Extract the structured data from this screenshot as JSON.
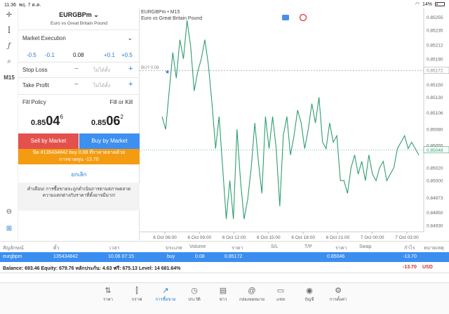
{
  "status": {
    "time": "11:36",
    "date": "พฤ. 7 ต.ค.",
    "battery": "14%"
  },
  "lefttools": {
    "timeframe": "M15"
  },
  "panel": {
    "symbol": "EURGBPm",
    "symbol_desc": "Euro vs Great Britain Pound",
    "order_type": "Market Execution",
    "vol_minus_05": "-0.5",
    "vol_minus_01": "-0.1",
    "volume": "0.08",
    "vol_plus_01": "+0.1",
    "vol_plus_05": "+0.5",
    "stop_loss_label": "Stop Loss",
    "take_profit_label": "Take Profit",
    "not_set": "ไม่ได้ตั้ง",
    "minus": "−",
    "plus": "+",
    "fill_policy_label": "Fill Policy",
    "fill_policy_value": "Fill or Kill",
    "bid_a": "0.85",
    "bid_b": "04",
    "bid_c": "6",
    "ask_a": "0.85",
    "ask_b": "06",
    "ask_c": "2",
    "sell_label": "Sell by Market",
    "buy_label": "Buy by Market",
    "orange_line1": "ปิด #135434842 buy 0.08 ที่ราคาตลาดด้วย",
    "orange_line2": "การขาดทุน -13.70",
    "cancel_label": "ยกเลิก",
    "warning_line1": "คำเตือน! การซื้อขายจะถูกดำเนินการตามสภาพตลาด",
    "warning_line2": "ความแตกต่างกับราคาที่ตั้งอาจมีมาก!"
  },
  "chart": {
    "symbol": "EURGBPm • M15",
    "desc": "Euro vs Great Britain Pound",
    "buy_label": "BUY 0.08"
  },
  "chart_data": {
    "type": "line",
    "x_ticks": [
      "6 Oct 06:00",
      "6 Oct 09:00",
      "6 Oct 12:00",
      "6 Oct 15:00",
      "6 Oct 18:00",
      "6 Oct 21:00",
      "7 Oct 00:00",
      "7 Oct 03:00"
    ],
    "y_ticks": [
      "0.85255",
      "0.85235",
      "0.85212",
      "0.85190",
      "0.85150",
      "0.85130",
      "0.85106",
      "0.85080",
      "0.85055",
      "0.85020",
      "0.85000",
      "0.84973",
      "0.84950",
      "0.84930"
    ],
    "ylim": [
      0.8492,
      0.8526
    ],
    "buy_price": 0.85172,
    "bid_price": 0.85048,
    "bid_label": "0.85048",
    "buy_price_label": "0.85172",
    "series": [
      {
        "values": [
          0.851,
          0.8508,
          0.8514,
          0.852,
          0.8516,
          0.8522,
          0.8519,
          0.8525,
          0.8521,
          0.8514,
          0.8517,
          0.8519,
          0.8522,
          0.8518,
          0.8512,
          0.8505,
          0.851,
          0.8502,
          0.8494,
          0.85,
          0.8494,
          0.8508,
          0.85,
          0.8494,
          0.8497,
          0.8502,
          0.8509,
          0.8503,
          0.8498,
          0.851,
          0.8505,
          0.851,
          0.8505,
          0.8496,
          0.8507,
          0.851,
          0.8504,
          0.8507,
          0.8511,
          0.8509,
          0.8505,
          0.8508,
          0.8512,
          0.8509,
          0.8513,
          0.8506,
          0.8505,
          0.8509,
          0.8506,
          0.8507,
          0.85,
          0.85,
          0.8498,
          0.8502,
          0.8504,
          0.8501,
          0.8503,
          0.85,
          0.8504,
          0.8501,
          0.85,
          0.8502,
          0.8503,
          0.85,
          0.8501,
          0.8502,
          0.8505,
          0.8506,
          0.8507,
          0.8505,
          0.8506,
          0.8505,
          0.8504
        ]
      }
    ]
  },
  "table": {
    "headers": [
      "สัญลักษณ์",
      "ตั๋ว",
      "เวลา",
      "ประเภท",
      "Volume",
      "ราคา",
      "S/L",
      "T/P",
      "ราคา",
      "Swap",
      "กำไร",
      "หมายเหตุ"
    ],
    "row": {
      "symbol": "eurgbpm",
      "ticket": "135434842",
      "time": "10.06 07:15",
      "type": "buy",
      "volume": "0.08",
      "price": "0.85172",
      "current": "0.85046",
      "profit": "-13.70"
    },
    "balance_text": "Balance: 693.46 Equity: 679.76 หลักประกัน: 4.63 ฟรี: 675.13 Level: 14 681.64%",
    "balance_profit": "-13.70",
    "currency": "USD"
  },
  "tabs": [
    {
      "label": "ราคา",
      "icon": "quotes-icon"
    },
    {
      "label": "กราฟ",
      "icon": "chart-icon"
    },
    {
      "label": "การซื้อขาย",
      "icon": "trade-icon"
    },
    {
      "label": "ประวัติ",
      "icon": "history-icon"
    },
    {
      "label": "ข่าว",
      "icon": "news-icon"
    },
    {
      "label": "กล่องจดหมาย",
      "icon": "mailbox-icon"
    },
    {
      "label": "แชท",
      "icon": "chat-icon"
    },
    {
      "label": "บัญชี",
      "icon": "account-icon"
    },
    {
      "label": "การตั้งค่า",
      "icon": "settings-icon"
    }
  ],
  "colors": {
    "accent": "#1f7ad9",
    "sell": "#e4514c",
    "buy": "#3d8ff0",
    "warning": "#f39c12",
    "line": "#2e9e6e"
  }
}
